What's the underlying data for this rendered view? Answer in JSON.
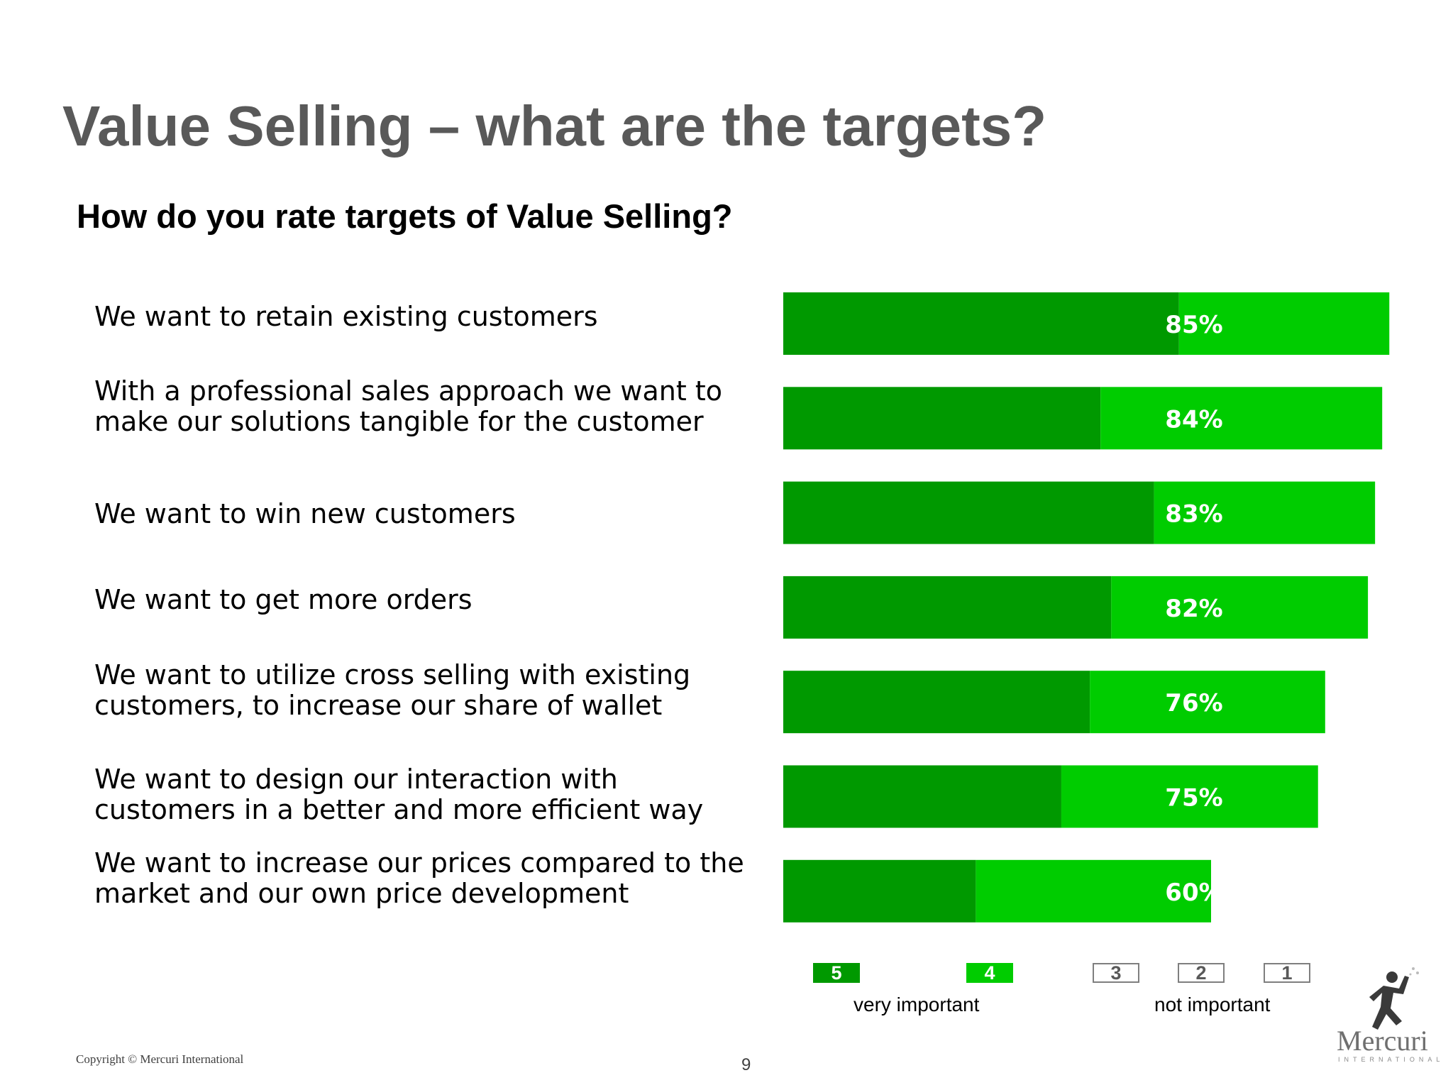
{
  "title": "Value Selling – what are the targets?",
  "subtitle": "How do you rate targets of Value Selling?",
  "colors": {
    "rating5": "#009900",
    "rating4": "#00cc00",
    "label_text": "#ffffff",
    "title": "#595959"
  },
  "chart_data": {
    "type": "bar",
    "orientation": "horizontal",
    "stacked": true,
    "categories": [
      "We want to retain existing customers",
      "With a professional sales approach we want to\nmake our solutions tangible for the customer",
      "We want to win new customers",
      "We want to get more orders",
      "We want to utilize cross selling with existing\ncustomers, to increase our share of wallet",
      "We want to design our interaction with\ncustomers in a better and  more efficient way",
      "We want to increase our prices compared to the\nmarket and  our own price development"
    ],
    "series": [
      {
        "name": "5",
        "values": [
          55.5,
          44.5,
          52,
          46,
          43,
          39,
          27
        ]
      },
      {
        "name": "4",
        "values": [
          29.5,
          39.5,
          31,
          36,
          33,
          36,
          33
        ]
      }
    ],
    "data_labels": [
      "85%",
      "84%",
      "83%",
      "82%",
      "76%",
      "75%",
      "60%"
    ],
    "xlim": [
      0,
      100
    ],
    "grid": false,
    "legend": {
      "position": "bottom",
      "items": [
        {
          "label": "5",
          "filled": true,
          "color": "#009900"
        },
        {
          "label": "4",
          "filled": true,
          "color": "#00cc00"
        },
        {
          "label": "3",
          "filled": false
        },
        {
          "label": "2",
          "filled": false
        },
        {
          "label": "1",
          "filled": false
        }
      ],
      "caption_left": "very important",
      "caption_right": "not important"
    }
  },
  "footer": {
    "copyright": "Copyright © Mercuri International",
    "page_number": "9"
  },
  "logo": {
    "name": "Mercuri",
    "subtext": "INTERNATIONAL",
    "icon": "running-figure-icon"
  }
}
